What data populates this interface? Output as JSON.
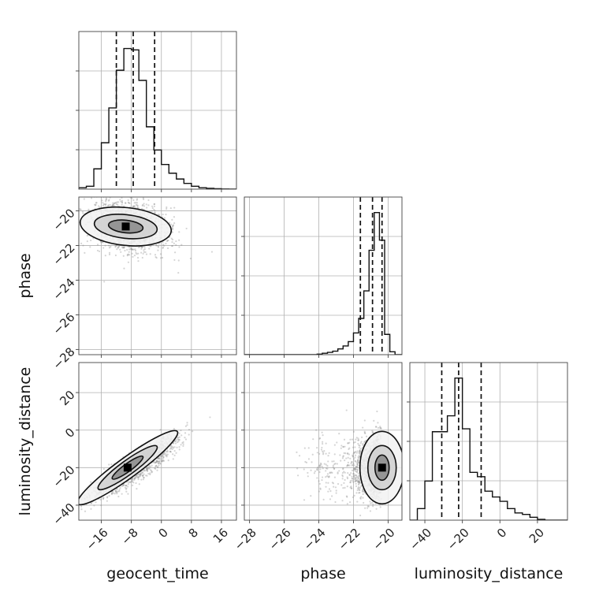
{
  "chart_data": {
    "type": "corner",
    "parameters": [
      "geocent_time",
      "phase",
      "luminosity_distance"
    ],
    "axis_labels": {
      "geocent_time": "geocent_time",
      "phase": "phase",
      "luminosity_distance": "luminosity_distance"
    },
    "ranges": {
      "geocent_time": [
        -22,
        20
      ],
      "phase": [
        -28.3,
        -19.2
      ],
      "luminosity_distance": [
        -48,
        36
      ]
    },
    "ticks": {
      "geocent_time": [
        -16,
        -8,
        0,
        8,
        16
      ],
      "phase": [
        -28,
        -26,
        -24,
        -22,
        -20
      ],
      "luminosity_distance": [
        -40,
        -20,
        0,
        20
      ]
    },
    "tick_labels": {
      "geocent_time": [
        "−16",
        "−8",
        "0",
        "8",
        "16"
      ],
      "phase": [
        "−28",
        "−26",
        "−24",
        "−22",
        "−20"
      ],
      "luminosity_distance": [
        "−40",
        "−20",
        "0",
        "20"
      ]
    },
    "grid": true,
    "quantiles": {
      "geocent_time": [
        -12,
        -7.5,
        -1.8
      ],
      "phase": [
        -21.6,
        -20.9,
        -20.35
      ],
      "luminosity_distance": [
        -31,
        -22,
        -10
      ]
    },
    "histograms": {
      "geocent_time": {
        "edges": [
          -22,
          -20,
          -18,
          -16,
          -14,
          -12,
          -10,
          -8,
          -6,
          -4,
          -2,
          0,
          2,
          4,
          6,
          8,
          10,
          12,
          14,
          16,
          18,
          20
        ],
        "counts": [
          0.01,
          0.02,
          0.14,
          0.32,
          0.56,
          0.82,
          0.97,
          0.96,
          0.75,
          0.43,
          0.27,
          0.17,
          0.11,
          0.07,
          0.04,
          0.02,
          0.01,
          0.006,
          0.003,
          0.001,
          0
        ]
      },
      "phase": {
        "edges": [
          -28.3,
          -28.0,
          -27.7,
          -27.4,
          -27.1,
          -26.8,
          -26.5,
          -26.2,
          -25.9,
          -25.6,
          -25.3,
          -25.0,
          -24.7,
          -24.4,
          -24.1,
          -23.8,
          -23.5,
          -23.2,
          -22.9,
          -22.6,
          -22.3,
          -22.0,
          -21.7,
          -21.4,
          -21.1,
          -20.8,
          -20.5,
          -20.2,
          -19.9,
          -19.6,
          -19.2
        ],
        "counts": [
          0,
          0,
          0,
          0,
          0,
          0,
          0,
          0,
          0,
          0,
          0,
          0,
          0,
          0,
          0.004,
          0.01,
          0.016,
          0.024,
          0.04,
          0.06,
          0.09,
          0.15,
          0.25,
          0.44,
          0.72,
          0.98,
          0.79,
          0.14,
          0.02,
          0
        ]
      },
      "luminosity_distance": {
        "edges": [
          -48,
          -44,
          -40,
          -36,
          -32,
          -28,
          -24,
          -20,
          -16,
          -12,
          -8,
          -4,
          0,
          4,
          8,
          12,
          16,
          20,
          24,
          28,
          32,
          36
        ],
        "counts": [
          0,
          0.08,
          0.27,
          0.61,
          0.61,
          0.72,
          0.98,
          0.63,
          0.33,
          0.3,
          0.2,
          0.16,
          0.13,
          0.08,
          0.05,
          0.04,
          0.02,
          0.006,
          0,
          0,
          0
        ]
      }
    },
    "scatter_samples": {
      "geocent_time_vs_phase": {
        "mean": [
          -8.8,
          -20.9
        ],
        "sd": [
          5.2,
          0.75
        ],
        "rho": -0.25,
        "n": 1500
      },
      "geocent_time_vs_luminosity_distance": {
        "mean": [
          -7.0,
          -20.0
        ],
        "sd": [
          5.6,
          8.0
        ],
        "rho": 0.9,
        "n": 1500
      },
      "phase_vs_luminosity_distance": {
        "mean": [
          -20.8,
          -20.0
        ],
        "sd": [
          0.5,
          8.0
        ],
        "rho": -0.1,
        "n": 1500
      }
    },
    "density_peaks": {
      "geocent_time_vs_phase": [
        -9.5,
        -20.9
      ],
      "geocent_time_vs_luminosity_distance": [
        -9.0,
        -20.0
      ],
      "phase_vs_luminosity_distance": [
        -20.35,
        -20.0
      ]
    }
  }
}
